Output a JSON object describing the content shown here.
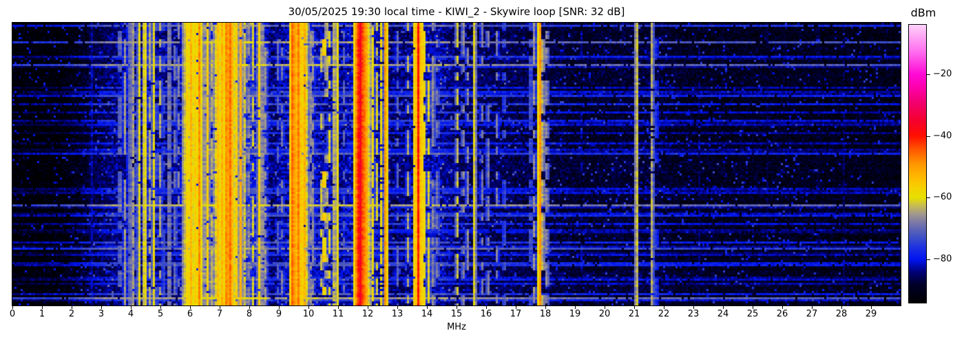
{
  "title": "30/05/2025 19:30 local time - KIWI_2 - Skywire loop [SNR: 32 dB]",
  "chart_data": {
    "type": "heatmap",
    "subtype": "radio-spectrum-waterfall",
    "title": "30/05/2025 19:30 local time - KIWI_2 - Skywire loop [SNR: 32 dB]",
    "xlabel": "MHz",
    "x_range_mhz": [
      0,
      30
    ],
    "x_ticks": [
      0,
      1,
      2,
      3,
      4,
      5,
      6,
      7,
      8,
      9,
      10,
      11,
      12,
      13,
      14,
      15,
      16,
      17,
      18,
      19,
      20,
      21,
      22,
      23,
      24,
      25,
      26,
      27,
      28,
      29
    ],
    "colorbar": {
      "label": "dBm",
      "ticks": [
        -20,
        -40,
        -60,
        -80
      ],
      "top_dbm": -4,
      "bottom_dbm": -94
    },
    "colormap_stops": [
      [
        0.0,
        "#000000"
      ],
      [
        0.067,
        "#00002a"
      ],
      [
        0.111,
        "#000078"
      ],
      [
        0.156,
        "#0014f0"
      ],
      [
        0.2,
        "#1e32e0"
      ],
      [
        0.244,
        "#4656c0"
      ],
      [
        0.283,
        "#7473aa"
      ],
      [
        0.317,
        "#9e9690"
      ],
      [
        0.35,
        "#c8bc52"
      ],
      [
        0.378,
        "#e6e000"
      ],
      [
        0.411,
        "#f4d200"
      ],
      [
        0.444,
        "#ffbe00"
      ],
      [
        0.5,
        "#ff9600"
      ],
      [
        0.556,
        "#ff5000"
      ],
      [
        0.6,
        "#ff0e00"
      ],
      [
        0.656,
        "#f4002e"
      ],
      [
        0.722,
        "#f20070"
      ],
      [
        0.778,
        "#fe00b0"
      ],
      [
        0.822,
        "#ff0ad6"
      ],
      [
        0.9,
        "#ff6aee"
      ],
      [
        1.0,
        "#ffd2fa"
      ]
    ],
    "ambient_profile_dbm": [
      [
        0,
        -93.5
      ],
      [
        1.6,
        -93
      ],
      [
        2.3,
        -90
      ],
      [
        2.9,
        -86.5
      ],
      [
        3.3,
        -84.5
      ],
      [
        5.6,
        -83.5
      ],
      [
        6.0,
        -79.5
      ],
      [
        8.5,
        -79
      ],
      [
        8.75,
        -84.5
      ],
      [
        9.35,
        -82
      ],
      [
        10.0,
        -81
      ],
      [
        10.95,
        -83.5
      ],
      [
        11.55,
        -81
      ],
      [
        12.3,
        -82
      ],
      [
        12.55,
        -85
      ],
      [
        13.45,
        -84.5
      ],
      [
        13.65,
        -82
      ],
      [
        14.5,
        -82.5
      ],
      [
        14.95,
        -85
      ],
      [
        16.5,
        -86
      ],
      [
        18.3,
        -87.5
      ],
      [
        19.1,
        -88.5
      ],
      [
        21.9,
        -88
      ],
      [
        22.6,
        -89.5
      ],
      [
        26.0,
        -89.5
      ],
      [
        30,
        -90.5
      ]
    ],
    "carriers_f_w_dbm_duty": [
      [
        2.66,
        0.02,
        -77,
        0.95
      ],
      [
        3.21,
        0.02,
        -80,
        0.7
      ],
      [
        3.63,
        0.03,
        -63,
        0.55
      ],
      [
        3.8,
        0.03,
        -65,
        0.6
      ],
      [
        3.92,
        0.03,
        -69,
        0.8
      ],
      [
        3.98,
        0.03,
        -62,
        0.8
      ],
      [
        4.06,
        0.03,
        -60,
        0.8
      ],
      [
        4.18,
        0.025,
        -67,
        0.6
      ],
      [
        4.28,
        0.03,
        -58,
        0.85
      ],
      [
        4.47,
        0.035,
        -53,
        0.92
      ],
      [
        4.63,
        0.025,
        -62,
        0.7
      ],
      [
        4.77,
        0.03,
        -58,
        0.85
      ],
      [
        4.88,
        0.02,
        -66,
        0.5
      ],
      [
        5.0,
        0.025,
        -62,
        0.7
      ],
      [
        5.1,
        0.02,
        -68,
        0.5
      ],
      [
        5.3,
        0.03,
        -61,
        0.8
      ],
      [
        5.5,
        0.025,
        -64,
        0.6
      ],
      [
        5.62,
        0.02,
        -67,
        0.5
      ],
      [
        5.8,
        0.035,
        -57,
        0.9
      ],
      [
        5.91,
        0.035,
        -54,
        0.9
      ],
      [
        5.97,
        0.03,
        -57,
        0.85
      ],
      [
        6.03,
        0.035,
        -52,
        0.92
      ],
      [
        6.09,
        0.03,
        -56,
        0.9
      ],
      [
        6.16,
        0.035,
        -53,
        0.92
      ],
      [
        6.24,
        0.03,
        -57,
        0.85
      ],
      [
        6.32,
        0.03,
        -47,
        0.92
      ],
      [
        6.4,
        0.03,
        -56,
        0.85
      ],
      [
        6.49,
        0.03,
        -58,
        0.8
      ],
      [
        6.6,
        0.03,
        -55,
        0.85
      ],
      [
        6.72,
        0.03,
        -61,
        0.7
      ],
      [
        6.85,
        0.03,
        -56,
        0.85
      ],
      [
        6.95,
        0.035,
        -52,
        0.9
      ],
      [
        7.06,
        0.035,
        -48,
        0.95
      ],
      [
        7.13,
        0.03,
        -53,
        0.9
      ],
      [
        7.21,
        0.035,
        -46,
        0.95
      ],
      [
        7.29,
        0.03,
        -50,
        0.9
      ],
      [
        7.37,
        0.035,
        -44,
        0.95
      ],
      [
        7.45,
        0.03,
        -49,
        0.9
      ],
      [
        7.58,
        0.03,
        -54,
        0.85
      ],
      [
        7.71,
        0.03,
        -52,
        0.85
      ],
      [
        7.83,
        0.025,
        -58,
        0.8
      ],
      [
        7.96,
        0.025,
        -61,
        0.7
      ],
      [
        8.12,
        0.03,
        -60,
        0.7
      ],
      [
        8.34,
        0.04,
        -56,
        0.85
      ],
      [
        8.44,
        0.03,
        -59,
        0.8
      ],
      [
        8.56,
        0.02,
        -63,
        0.6
      ],
      [
        8.98,
        0.02,
        -68,
        0.5
      ],
      [
        9.12,
        0.02,
        -65,
        0.55
      ],
      [
        9.41,
        0.035,
        -50,
        0.9
      ],
      [
        9.48,
        0.035,
        -40,
        0.96
      ],
      [
        9.56,
        0.03,
        -52,
        0.9
      ],
      [
        9.64,
        0.035,
        -42,
        0.95
      ],
      [
        9.71,
        0.03,
        -50,
        0.9
      ],
      [
        9.79,
        0.03,
        -54,
        0.85
      ],
      [
        9.87,
        0.03,
        -52,
        0.85
      ],
      [
        9.96,
        0.03,
        -57,
        0.8
      ],
      [
        10.06,
        0.025,
        -62,
        0.7
      ],
      [
        10.16,
        0.02,
        -65,
        0.6
      ],
      [
        10.45,
        0.03,
        -58,
        0.45
      ],
      [
        10.53,
        0.025,
        -49,
        0.3
      ],
      [
        10.61,
        0.03,
        -57,
        0.45
      ],
      [
        10.71,
        0.025,
        -60,
        0.4
      ],
      [
        10.88,
        0.03,
        -56,
        0.85
      ],
      [
        10.98,
        0.03,
        -58,
        0.85
      ],
      [
        11.2,
        0.02,
        -70,
        0.5
      ],
      [
        11.59,
        0.035,
        -48,
        0.9
      ],
      [
        11.67,
        0.045,
        -38,
        0.97
      ],
      [
        11.77,
        0.05,
        -35,
        0.97
      ],
      [
        11.87,
        0.04,
        -42,
        0.95
      ],
      [
        11.97,
        0.03,
        -50,
        0.9
      ],
      [
        12.06,
        0.03,
        -55,
        0.85
      ],
      [
        12.17,
        0.025,
        -58,
        0.8
      ],
      [
        12.31,
        0.025,
        -61,
        0.7
      ],
      [
        12.46,
        0.025,
        -57,
        0.75
      ],
      [
        12.61,
        0.03,
        -46,
        0.9
      ],
      [
        13.0,
        0.02,
        -68,
        0.4
      ],
      [
        13.36,
        0.02,
        -64,
        0.5
      ],
      [
        13.59,
        0.03,
        -52,
        0.85
      ],
      [
        13.71,
        0.04,
        -40,
        0.95
      ],
      [
        13.81,
        0.03,
        -48,
        0.9
      ],
      [
        13.91,
        0.025,
        -57,
        0.7
      ],
      [
        14.06,
        0.025,
        -60,
        0.7
      ],
      [
        14.22,
        0.025,
        -62,
        0.65
      ],
      [
        14.36,
        0.02,
        -64,
        0.5
      ],
      [
        15.02,
        0.025,
        -59,
        0.6
      ],
      [
        15.22,
        0.02,
        -62,
        0.55
      ],
      [
        15.37,
        0.02,
        -64,
        0.5
      ],
      [
        15.61,
        0.03,
        -57,
        0.92
      ],
      [
        15.86,
        0.02,
        -66,
        0.5
      ],
      [
        16.06,
        0.02,
        -64,
        0.55
      ],
      [
        16.37,
        0.025,
        -66,
        0.45
      ],
      [
        16.61,
        0.02,
        -67,
        0.4
      ],
      [
        17.51,
        0.02,
        -66,
        0.5
      ],
      [
        17.63,
        0.02,
        -63,
        0.6
      ],
      [
        17.81,
        0.03,
        -46,
        0.95
      ],
      [
        17.92,
        0.02,
        -58,
        0.7
      ],
      [
        18.06,
        0.02,
        -62,
        0.6
      ],
      [
        19.21,
        0.02,
        -80,
        0.6
      ],
      [
        19.81,
        0.02,
        -82,
        0.5
      ],
      [
        21.08,
        0.03,
        -57,
        0.95
      ],
      [
        21.61,
        0.03,
        -60,
        0.85
      ],
      [
        21.76,
        0.02,
        -70,
        0.6
      ],
      [
        23.21,
        0.02,
        -82,
        0.6
      ],
      [
        24.01,
        0.02,
        -83,
        0.5
      ],
      [
        25.51,
        0.02,
        -84,
        0.5
      ],
      [
        27.21,
        0.02,
        -80,
        0.7
      ],
      [
        28.06,
        0.02,
        -81,
        0.6
      ],
      [
        29.31,
        0.02,
        -83,
        0.5
      ]
    ],
    "impulse_streaks": {
      "strong_probability": 0.07,
      "strong_boost_db": [
        12,
        20
      ],
      "faint_probability": 0.26,
      "faint_boost_db": [
        4.5,
        11.5
      ]
    },
    "noise": {
      "sigma_db": 3.0,
      "active_sigma_db": 3.5,
      "spike_prob": 0.05,
      "active_spike_prob": 0.1,
      "spike_db": [
        5,
        16
      ]
    },
    "seed": 20250530,
    "time_rows": 137,
    "freq_bins": 430
  }
}
